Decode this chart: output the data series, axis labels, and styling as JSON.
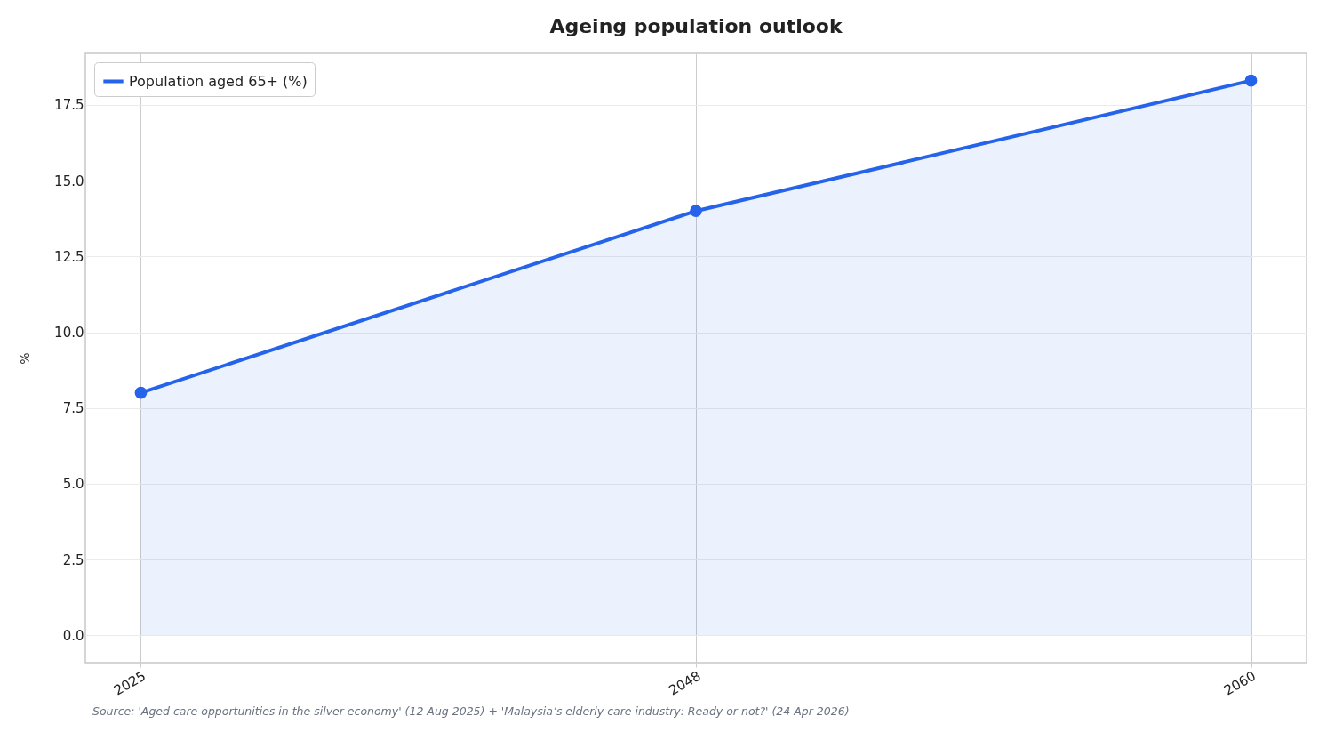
{
  "chart_data": {
    "type": "area",
    "title": "Ageing population outlook",
    "ylabel": "%",
    "categories": [
      "2025",
      "2048",
      "2060"
    ],
    "series": [
      {
        "name": "Population aged 65+ (%)",
        "color": "#2563eb",
        "values": [
          8.0,
          14.0,
          18.3
        ]
      }
    ],
    "ylim": [
      -0.9,
      19.2
    ],
    "yticks": [
      {
        "value": 0,
        "label": "0.0"
      },
      2.5,
      {
        "value": 5,
        "label": "5.0"
      },
      7.5,
      {
        "value": 10,
        "label": "10.0"
      },
      12.5,
      {
        "value": 15,
        "label": "15.0"
      },
      17.5
    ],
    "grid": true,
    "legend": "top left",
    "marker": "circle",
    "line_style": "solid",
    "annotations": [
      "Source: 'Aged care opportunities in the silver economy' (12 Aug 2025) + 'Malaysia’s elderly care industry: Ready or not?' (24 Apr 2026)"
    ]
  }
}
